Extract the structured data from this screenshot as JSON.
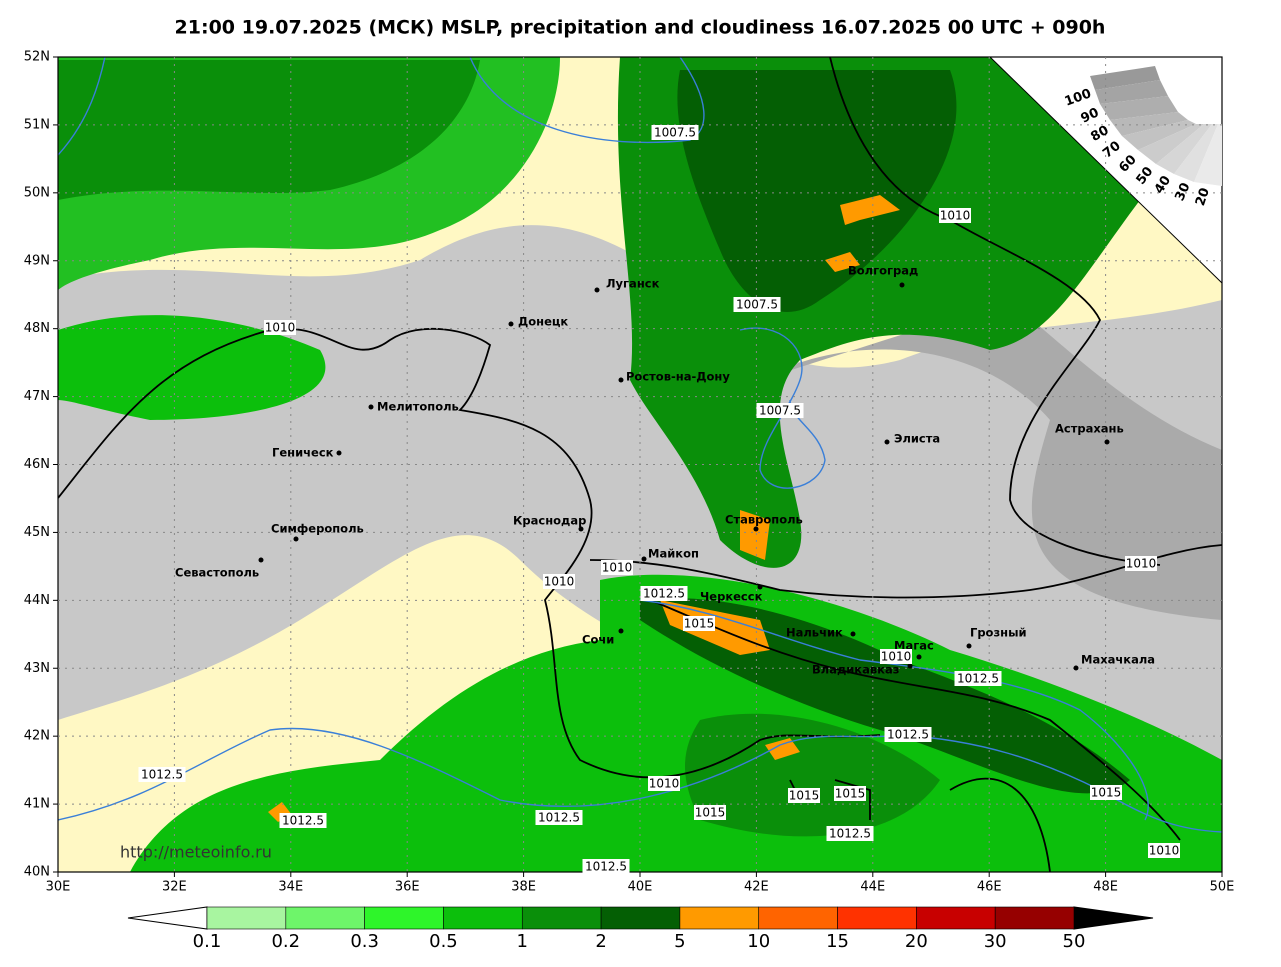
{
  "title": "21:00 19.07.2025 (МСК) MSLP, precipitation and cloudiness 16.07.2025 00 UTC + 090h",
  "lat_labels": [
    "52N",
    "51N",
    "50N",
    "49N",
    "48N",
    "47N",
    "46N",
    "45N",
    "44N",
    "43N",
    "42N",
    "41N",
    "40N"
  ],
  "lon_labels": [
    "30E",
    "32E",
    "34E",
    "36E",
    "38E",
    "40E",
    "42E",
    "44E",
    "46E",
    "48E",
    "50E"
  ],
  "cities": [
    "Луганск",
    "Донецк",
    "Ростов-на-Дону",
    "Волгоград",
    "Мелитополь",
    "Геническ",
    "Элиста",
    "Астрахань",
    "Симферополь",
    "Севастополь",
    "Краснодар",
    "Ставрополь",
    "Майкоп",
    "Черкесск",
    "Сочи",
    "Нальчик",
    "Магас",
    "Грозный",
    "Владикавказ",
    "Махачкала"
  ],
  "isobar_labels": [
    "1007.5",
    "1010",
    "1007.5",
    "1010",
    "1007.5",
    "1010",
    "1010",
    "1010",
    "1012.5",
    "1015",
    "1010",
    "1012.5",
    "1012.5",
    "1012.5",
    "1010",
    "1015",
    "1015",
    "1015",
    "1012.5",
    "1012.5",
    "1015",
    "1012.5",
    "1010",
    "1012.5"
  ],
  "colorbar": {
    "labels": [
      "0.1",
      "0.2",
      "0.3",
      "0.5",
      "1",
      "2",
      "5",
      "10",
      "15",
      "20",
      "30",
      "50"
    ],
    "colors": [
      "#a8f5a0",
      "#6ef56a",
      "#2ef52a",
      "#0cbf0c",
      "#0a8f0a",
      "#045f04",
      "#ff9a00",
      "#ff6400",
      "#ff3200",
      "#c80000",
      "#960000"
    ]
  },
  "cloud_labels": [
    "100",
    "90",
    "80",
    "70",
    "60",
    "50",
    "40",
    "30",
    "20"
  ],
  "url": "http://meteoinfo.ru"
}
